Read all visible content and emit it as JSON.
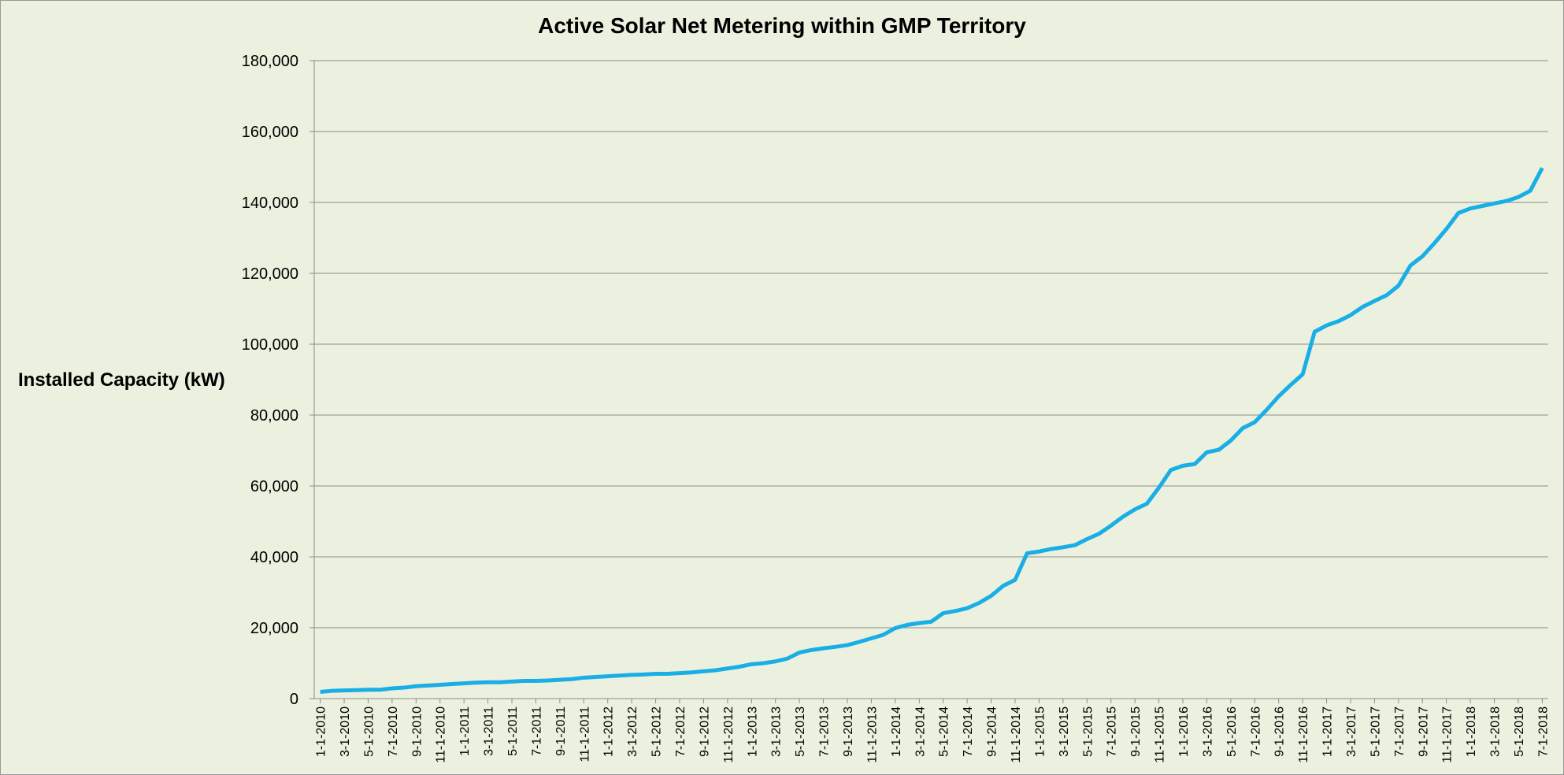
{
  "chart_data": {
    "type": "line",
    "title": "Active Solar Net Metering within GMP Territory",
    "y_label": "Installed Capacity (kW)",
    "categories": [
      "1-1-2010",
      null,
      "3-1-2010",
      null,
      "5-1-2010",
      null,
      "7-1-2010",
      null,
      "9-1-2010",
      null,
      "11-1-2010",
      null,
      "1-1-2011",
      null,
      "3-1-2011",
      null,
      "5-1-2011",
      null,
      "7-1-2011",
      null,
      "9-1-2011",
      null,
      "11-1-2011",
      null,
      "1-1-2012",
      null,
      "3-1-2012",
      null,
      "5-1-2012",
      null,
      "7-1-2012",
      null,
      "9-1-2012",
      null,
      "11-1-2012",
      null,
      "1-1-2013",
      null,
      "3-1-2013",
      null,
      "5-1-2013",
      null,
      "7-1-2013",
      null,
      "9-1-2013",
      null,
      "11-1-2013",
      null,
      "1-1-2014",
      null,
      "3-1-2014",
      null,
      "5-1-2014",
      null,
      "7-1-2014",
      null,
      "9-1-2014",
      null,
      "11-1-2014",
      null,
      "1-1-2015",
      null,
      "3-1-2015",
      null,
      "5-1-2015",
      null,
      "7-1-2015",
      null,
      "9-1-2015",
      null,
      "11-1-2015",
      null,
      "1-1-2016",
      null,
      "3-1-2016",
      null,
      "5-1-2016",
      null,
      "7-1-2016",
      null,
      "9-1-2016",
      null,
      "11-1-2016",
      null,
      "1-1-2017",
      null,
      "3-1-2017",
      null,
      "5-1-2017",
      null,
      "7-1-2017",
      null,
      "9-1-2017",
      null,
      "11-1-2017",
      null,
      "1-1-2018",
      null,
      "3-1-2018",
      null,
      "5-1-2018",
      null,
      "7-1-2018"
    ],
    "series": [
      {
        "name": "Installed Capacity (kW)",
        "color": "#1aaee6",
        "values": [
          1900,
          2200,
          2300,
          2400,
          2500,
          2500,
          2900,
          3100,
          3500,
          3700,
          3900,
          4100,
          4300,
          4500,
          4600,
          4600,
          4800,
          5000,
          5000,
          5100,
          5300,
          5500,
          5900,
          6100,
          6300,
          6500,
          6700,
          6800,
          7000,
          7000,
          7200,
          7400,
          7700,
          8000,
          8500,
          9000,
          9700,
          10000,
          10500,
          11300,
          13000,
          13700,
          14200,
          14600,
          15100,
          16000,
          17000,
          18000,
          19900,
          20800,
          21300,
          21700,
          24100,
          24700,
          25500,
          27000,
          29000,
          31800,
          33500,
          41000,
          41500,
          42200,
          42700,
          43300,
          45000,
          46500,
          48800,
          51300,
          53400,
          55000,
          59500,
          64500,
          65700,
          66200,
          69500,
          70200,
          72800,
          76300,
          78000,
          81500,
          85300,
          88500,
          91500,
          103500,
          105300,
          106500,
          108200,
          110500,
          112200,
          113800,
          116500,
          122200,
          124800,
          128500,
          132500,
          137000,
          138300,
          139000,
          139700,
          140400,
          141500,
          143300,
          149700
        ]
      }
    ],
    "ylim": [
      0,
      180000
    ],
    "yticks": [
      0,
      {
        "value": 20000,
        "label": "20,000"
      },
      {
        "value": 40000,
        "label": "40,000"
      },
      {
        "value": 60000,
        "label": "60,000"
      },
      {
        "value": 80000,
        "label": "80,000"
      },
      {
        "value": 100000,
        "label": "100,000"
      },
      {
        "value": 120000,
        "label": "120,000"
      },
      {
        "value": 140000,
        "label": "140,000"
      },
      {
        "value": 160000,
        "label": "160,000"
      },
      {
        "value": 180000,
        "label": "180,000"
      }
    ],
    "grid": true
  }
}
